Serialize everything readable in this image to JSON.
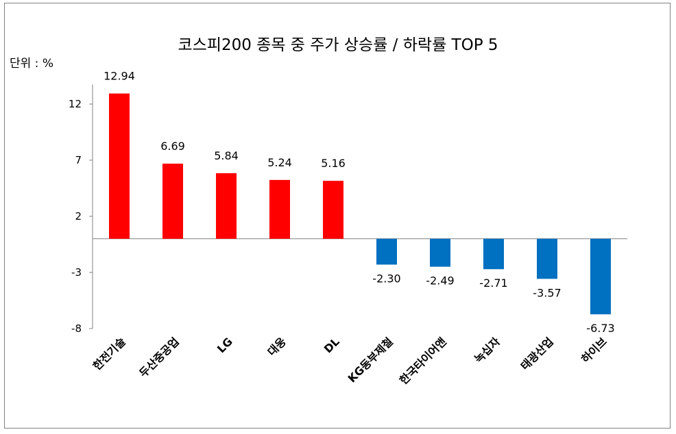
{
  "chart_data": {
    "type": "bar",
    "title": "코스피200 종목 중  주가 상승률 / 하락률 TOP 5",
    "unit_label": "단위 : %",
    "categories": [
      "한전기술",
      "두산중공업",
      "LG",
      "대웅",
      "DL",
      "KG동부제철",
      "한국타이어앤",
      "녹십자",
      "태광산업",
      "하이브"
    ],
    "values": [
      12.94,
      6.69,
      5.84,
      5.24,
      5.16,
      -2.3,
      -2.49,
      -2.71,
      -3.57,
      -6.73
    ],
    "value_labels": [
      "12.94",
      "6.69",
      "5.84",
      "5.24",
      "5.16",
      "-2.30",
      "-2.49",
      "-2.71",
      "-3.57",
      "-6.73"
    ],
    "yticks": [
      -8,
      -3,
      2,
      7,
      12
    ],
    "ylim": [
      -8,
      14
    ],
    "colors": {
      "positive": "#ff0000",
      "negative": "#0070c0"
    },
    "grid": false,
    "legend": "none"
  }
}
